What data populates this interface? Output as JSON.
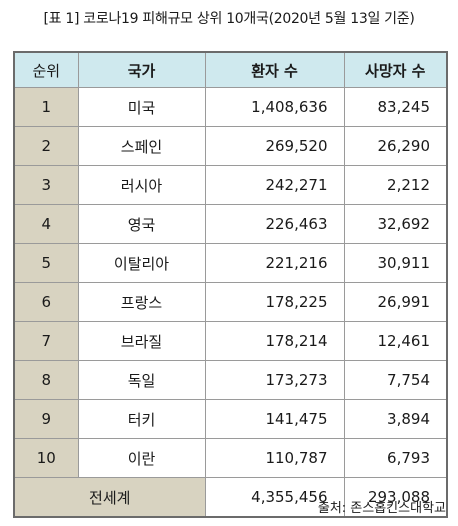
{
  "title": "[표 1] 코로나19 피해규모 상위 10개국(2020년 5월 13일 기준)",
  "table": {
    "headers": {
      "rank": "순위",
      "country": "국가",
      "cases": "환자 수",
      "deaths": "사망자 수"
    },
    "rows": [
      {
        "rank": "1",
        "country": "미국",
        "cases": "1,408,636",
        "deaths": "83,245"
      },
      {
        "rank": "2",
        "country": "스페인",
        "cases": "269,520",
        "deaths": "26,290"
      },
      {
        "rank": "3",
        "country": "러시아",
        "cases": "242,271",
        "deaths": "2,212"
      },
      {
        "rank": "4",
        "country": "영국",
        "cases": "226,463",
        "deaths": "32,692"
      },
      {
        "rank": "5",
        "country": "이탈리아",
        "cases": "221,216",
        "deaths": "30,911"
      },
      {
        "rank": "6",
        "country": "프랑스",
        "cases": "178,225",
        "deaths": "26,991"
      },
      {
        "rank": "7",
        "country": "브라질",
        "cases": "178,214",
        "deaths": "12,461"
      },
      {
        "rank": "8",
        "country": "독일",
        "cases": "173,273",
        "deaths": "7,754"
      },
      {
        "rank": "9",
        "country": "터키",
        "cases": "141,475",
        "deaths": "3,894"
      },
      {
        "rank": "10",
        "country": "이란",
        "cases": "110,787",
        "deaths": "6,793"
      }
    ],
    "total": {
      "label": "전세계",
      "cases": "4,355,456",
      "deaths": "293,088"
    }
  },
  "source": "출처: 존스홉킨스대학교",
  "colors": {
    "header_bg": "#cfe9ee",
    "rank_bg": "#d8d3c1",
    "border": "#9a9a9a"
  }
}
